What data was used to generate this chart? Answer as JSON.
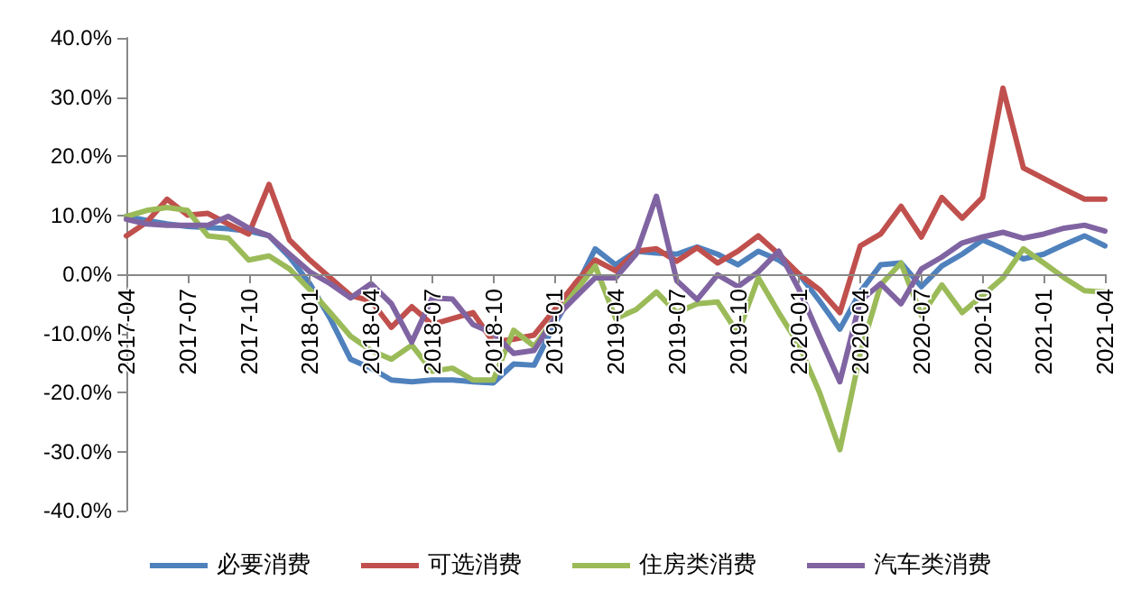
{
  "chart_data": {
    "type": "line",
    "categories": [
      "2017-04",
      null,
      null,
      "2017-07",
      null,
      null,
      "2017-10",
      null,
      null,
      "2018-01",
      null,
      null,
      "2018-04",
      null,
      null,
      "2018-07",
      null,
      null,
      "2018-10",
      null,
      null,
      "2019-01",
      null,
      null,
      "2019-04",
      null,
      null,
      "2019-07",
      null,
      null,
      "2019-10",
      null,
      null,
      "2020-01",
      null,
      null,
      "2020-04",
      null,
      null,
      "2020-07",
      null,
      null,
      "2020-10",
      null,
      null,
      "2021-01",
      null,
      null,
      "2021-04"
    ],
    "series": [
      {
        "name": "必要消费",
        "color": "#4f81bd",
        "values": [
          9.8,
          9.1,
          8.5,
          8.1,
          7.9,
          7.7,
          7.3,
          6.5,
          2.9,
          -1.6,
          -7.5,
          -14.4,
          -15.9,
          -17.9,
          -18.2,
          -17.9,
          -17.9,
          -18.2,
          -18.4,
          -15.2,
          -15.4,
          -8.5,
          -2.6,
          4.3,
          1.6,
          3.9,
          3.6,
          3.4,
          4.6,
          3.4,
          1.6,
          3.9,
          2.4,
          0,
          -4.5,
          -9.3,
          -3,
          1.6,
          1.9,
          -2.1,
          1.4,
          3.4,
          5.8,
          4.3,
          2.6,
          3.4,
          5,
          6.5,
          4.8
        ]
      },
      {
        "name": "可选消费",
        "color": "#c0504d",
        "values": [
          6.5,
          8.8,
          12.7,
          10,
          10.3,
          8.5,
          6.8,
          15.2,
          5.8,
          2.4,
          -0.6,
          -3.6,
          -4.5,
          -9,
          -5.5,
          -8.5,
          -7.5,
          -6.5,
          -11.5,
          -11,
          -10.3,
          -6,
          -1.6,
          2.4,
          0.6,
          3.9,
          4.3,
          2.2,
          4.5,
          1.9,
          3.9,
          6.5,
          3.4,
          0,
          -2.6,
          -6.5,
          4.8,
          6.8,
          11.5,
          6.3,
          13,
          9.5,
          13,
          31.5,
          18,
          16.2,
          14.4,
          12.7,
          12.7
        ]
      },
      {
        "name": "住房类消费",
        "color": "#9bbb59",
        "values": [
          9.8,
          10.8,
          11.3,
          10.8,
          6.5,
          6.1,
          2.4,
          3.1,
          0.9,
          -2.6,
          -6.5,
          -10.5,
          -12.9,
          -14.4,
          -12,
          -16.4,
          -15.9,
          -17.9,
          -17.9,
          -9.5,
          -12.2,
          -7.5,
          -3,
          1.4,
          -7.5,
          -6,
          -3,
          -6.5,
          -5,
          -4.7,
          -10,
          -0.6,
          -6.5,
          -12,
          -20,
          -29.7,
          -13.4,
          -1.8,
          1.9,
          -7,
          -1.8,
          -6.5,
          -3.6,
          -0.6,
          4.3,
          1.9,
          -0.6,
          -2.8,
          -3
        ]
      },
      {
        "name": "汽车类消费",
        "color": "#8064a2",
        "values": [
          9.3,
          8.5,
          8.3,
          8.3,
          8.3,
          9.8,
          7.8,
          6.5,
          3.4,
          0.4,
          -1.6,
          -4,
          -1.6,
          -5,
          -11.5,
          -4,
          -4.2,
          -8.5,
          -10,
          -13.4,
          -12.9,
          -7.5,
          -4,
          -0.6,
          -0.6,
          3.4,
          13.2,
          -1.1,
          -4.3,
          -0.1,
          -2.1,
          0.4,
          3.9,
          -2.6,
          -10.5,
          -18.2,
          -4.5,
          -1.6,
          -5,
          0.9,
          2.9,
          5.3,
          6.3,
          7.1,
          6.1,
          6.8,
          7.8,
          8.3,
          7.3
        ]
      }
    ],
    "ylim": [
      -40,
      40
    ],
    "yticks": [
      {
        "value": -40,
        "label": "-40.0%"
      },
      {
        "value": -30,
        "label": "-30.0%"
      },
      {
        "value": -20,
        "label": "-20.0%"
      },
      {
        "value": -10,
        "label": "-10.0%"
      },
      {
        "value": 0,
        "label": "0.0%"
      },
      {
        "value": 10,
        "label": "10.0%"
      },
      {
        "value": 20,
        "label": "20.0%"
      },
      {
        "value": 30,
        "label": "30.0%"
      },
      {
        "value": 40,
        "label": "40.0%"
      }
    ],
    "grid": false,
    "legend": "bottom",
    "marker": "none",
    "line_style": "solid"
  }
}
